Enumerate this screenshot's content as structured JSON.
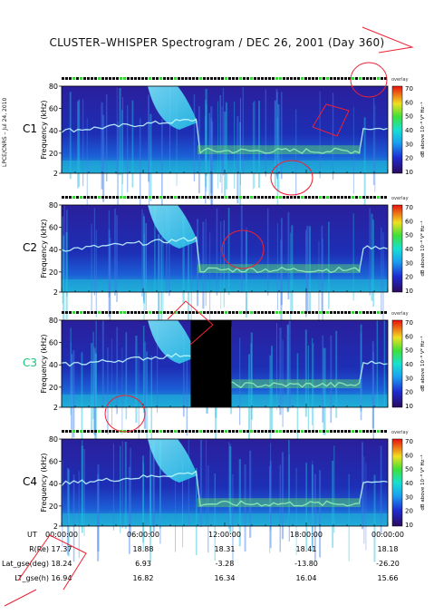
{
  "title": "CLUSTER–WHISPER Spectrogram / DEC 26, 2001 (Day 360)",
  "credit": "LPCE/CNRS – Jul 24, 2010",
  "chart_data": {
    "type": "heatmap",
    "panels": [
      {
        "label": "C1",
        "label_color": "#000000",
        "data_gap": null
      },
      {
        "label": "C2",
        "label_color": "#000000",
        "data_gap": null
      },
      {
        "label": "C3",
        "label_color": "#19c37a",
        "data_gap": [
          "09:30",
          "12:30"
        ]
      },
      {
        "label": "C4",
        "label_color": "#000000",
        "data_gap": null
      }
    ],
    "ylabel": "Frequency (kHz)",
    "yticks": [
      "80",
      "60",
      "40",
      "20",
      "2"
    ],
    "ylim": [
      2,
      80
    ],
    "colorbar": {
      "label": "dB above 10⁻⁸ V² Hz⁻¹",
      "ticks": [
        "70",
        "60",
        "50",
        "40",
        "30",
        "20",
        "10"
      ],
      "range": [
        10,
        70
      ],
      "header": "overlay"
    },
    "x_axis": {
      "row_label": "UT",
      "ticks": [
        "00:00:00",
        "06:00:00",
        "12:00:00",
        "18:00:00",
        "00:00:00"
      ]
    },
    "ephemeris": [
      {
        "label": "R(Re)",
        "values": [
          "17.37",
          "18.88",
          "18.31",
          "18.41",
          "18.18"
        ]
      },
      {
        "label": "Lat_gse(deg)",
        "values": [
          "18.24",
          "6.93",
          "-3.28",
          "-13.80",
          "-26.20"
        ]
      },
      {
        "label": "LT_gse(h)",
        "values": [
          "16.94",
          "16.82",
          "16.34",
          "16.04",
          "15.66"
        ]
      }
    ]
  }
}
